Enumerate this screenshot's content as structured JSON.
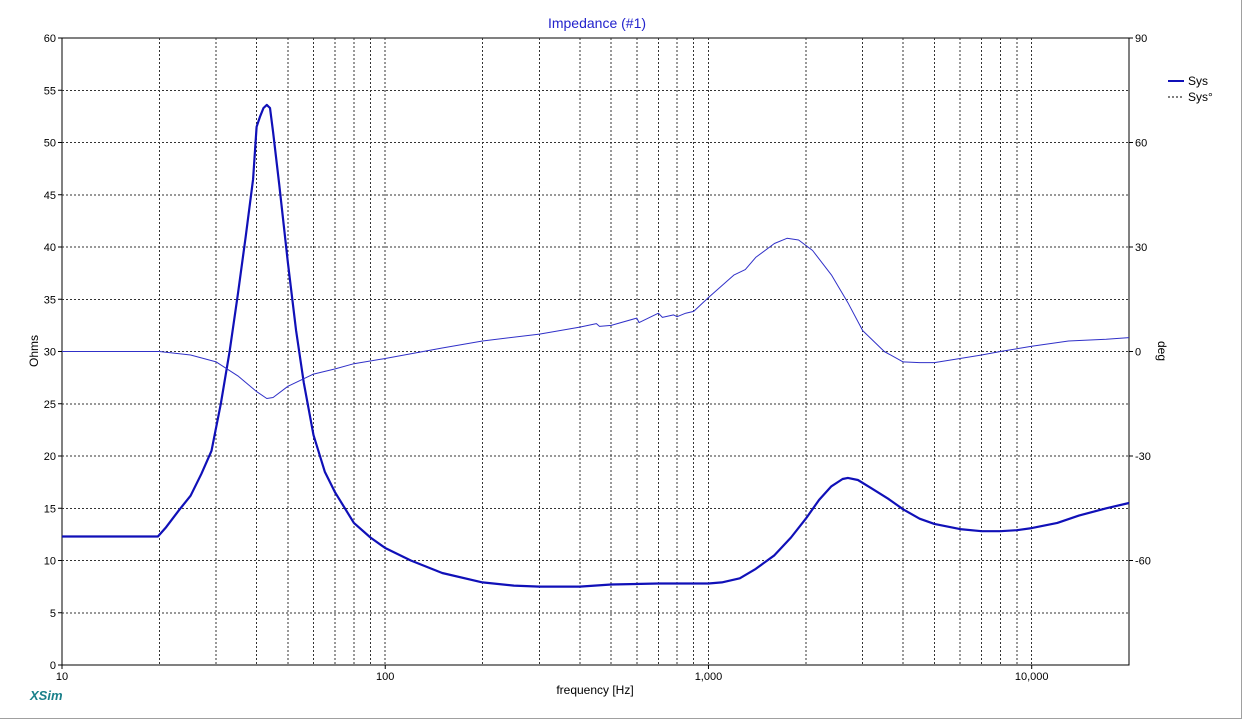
{
  "app": {
    "brand": "XSim"
  },
  "colors": {
    "impedance": "#1010b8",
    "phase": "#3030c8",
    "title": "#2222cc",
    "grid": "#333333",
    "brand": "#19808a"
  },
  "chart_data": {
    "type": "line",
    "title": "Impedance (#1)",
    "xlabel": "frequency [Hz]",
    "ylabel": "Ohms",
    "y2label": "deg",
    "xscale": "log",
    "xlim": [
      10,
      20000
    ],
    "ylim": [
      0,
      60
    ],
    "y2lim": [
      -90,
      90
    ],
    "grid": true,
    "legend_position": "top-right",
    "xticks": [
      {
        "value": 10,
        "label": "10"
      },
      {
        "value": 100,
        "label": "100"
      },
      {
        "value": 1000,
        "label": "1,000"
      },
      {
        "value": 10000,
        "label": "10,000"
      }
    ],
    "yticks": [
      0,
      5,
      10,
      15,
      20,
      25,
      30,
      35,
      40,
      45,
      50,
      55,
      60
    ],
    "y2ticks": [
      90,
      60,
      30,
      0,
      -30,
      -60
    ],
    "series": [
      {
        "name": "Sys",
        "axis": "left",
        "style": "solid",
        "points": [
          [
            10,
            12.3
          ],
          [
            19.8,
            12.3
          ],
          [
            21,
            13.2
          ],
          [
            23,
            14.8
          ],
          [
            25,
            16.2
          ],
          [
            27,
            18.3
          ],
          [
            29,
            20.5
          ],
          [
            31,
            25
          ],
          [
            33,
            30
          ],
          [
            35,
            35.5
          ],
          [
            37,
            41
          ],
          [
            39,
            46.5
          ],
          [
            40,
            51.5
          ],
          [
            41,
            52.5
          ],
          [
            42,
            53.3
          ],
          [
            43,
            53.6
          ],
          [
            44,
            53.3
          ],
          [
            45,
            51
          ],
          [
            47,
            46
          ],
          [
            50,
            38.5
          ],
          [
            53,
            32
          ],
          [
            56,
            27
          ],
          [
            60,
            22
          ],
          [
            65,
            18.5
          ],
          [
            70,
            16.5
          ],
          [
            80,
            13.6
          ],
          [
            90,
            12.2
          ],
          [
            100,
            11.2
          ],
          [
            120,
            10
          ],
          [
            150,
            8.8
          ],
          [
            200,
            7.9
          ],
          [
            250,
            7.6
          ],
          [
            300,
            7.5
          ],
          [
            400,
            7.5
          ],
          [
            500,
            7.7
          ],
          [
            700,
            7.8
          ],
          [
            900,
            7.8
          ],
          [
            1000,
            7.8
          ],
          [
            1100,
            7.9
          ],
          [
            1250,
            8.3
          ],
          [
            1400,
            9.2
          ],
          [
            1600,
            10.5
          ],
          [
            1800,
            12.2
          ],
          [
            2000,
            14
          ],
          [
            2200,
            15.8
          ],
          [
            2400,
            17.1
          ],
          [
            2600,
            17.8
          ],
          [
            2700,
            17.9
          ],
          [
            2900,
            17.7
          ],
          [
            3200,
            16.9
          ],
          [
            3600,
            15.9
          ],
          [
            4000,
            14.9
          ],
          [
            4500,
            14
          ],
          [
            5000,
            13.5
          ],
          [
            6000,
            13
          ],
          [
            7000,
            12.8
          ],
          [
            8000,
            12.8
          ],
          [
            9000,
            12.9
          ],
          [
            10000,
            13.1
          ],
          [
            12000,
            13.6
          ],
          [
            14000,
            14.3
          ],
          [
            17000,
            15
          ],
          [
            20000,
            15.5
          ]
        ]
      },
      {
        "name": "Sys°",
        "axis": "right",
        "style": "dashed",
        "points": [
          [
            10,
            0
          ],
          [
            20,
            0
          ],
          [
            25,
            -1
          ],
          [
            30,
            -3
          ],
          [
            35,
            -7
          ],
          [
            40,
            -11.5
          ],
          [
            43,
            -13.5
          ],
          [
            45,
            -13.2
          ],
          [
            50,
            -10
          ],
          [
            60,
            -6.5
          ],
          [
            70,
            -5
          ],
          [
            80,
            -3.5
          ],
          [
            100,
            -2
          ],
          [
            150,
            1
          ],
          [
            200,
            3
          ],
          [
            300,
            5
          ],
          [
            400,
            7
          ],
          [
            450,
            8
          ],
          [
            460,
            7.2
          ],
          [
            500,
            7.5
          ],
          [
            600,
            9.6
          ],
          [
            610,
            8.3
          ],
          [
            700,
            11
          ],
          [
            720,
            9.8
          ],
          [
            780,
            10.5
          ],
          [
            800,
            10
          ],
          [
            850,
            11
          ],
          [
            900,
            11.5
          ],
          [
            1000,
            15.5
          ],
          [
            1200,
            22
          ],
          [
            1300,
            23.5
          ],
          [
            1400,
            27
          ],
          [
            1600,
            31
          ],
          [
            1750,
            32.5
          ],
          [
            1900,
            32
          ],
          [
            2100,
            29
          ],
          [
            2400,
            22
          ],
          [
            2700,
            14
          ],
          [
            3000,
            6
          ],
          [
            3500,
            0
          ],
          [
            4000,
            -3
          ],
          [
            4500,
            -3.2
          ],
          [
            5000,
            -3.2
          ],
          [
            6000,
            -2
          ],
          [
            7000,
            -1
          ],
          [
            8000,
            0
          ],
          [
            10000,
            1.5
          ],
          [
            13000,
            3
          ],
          [
            17000,
            3.5
          ],
          [
            20000,
            4
          ]
        ]
      }
    ]
  }
}
